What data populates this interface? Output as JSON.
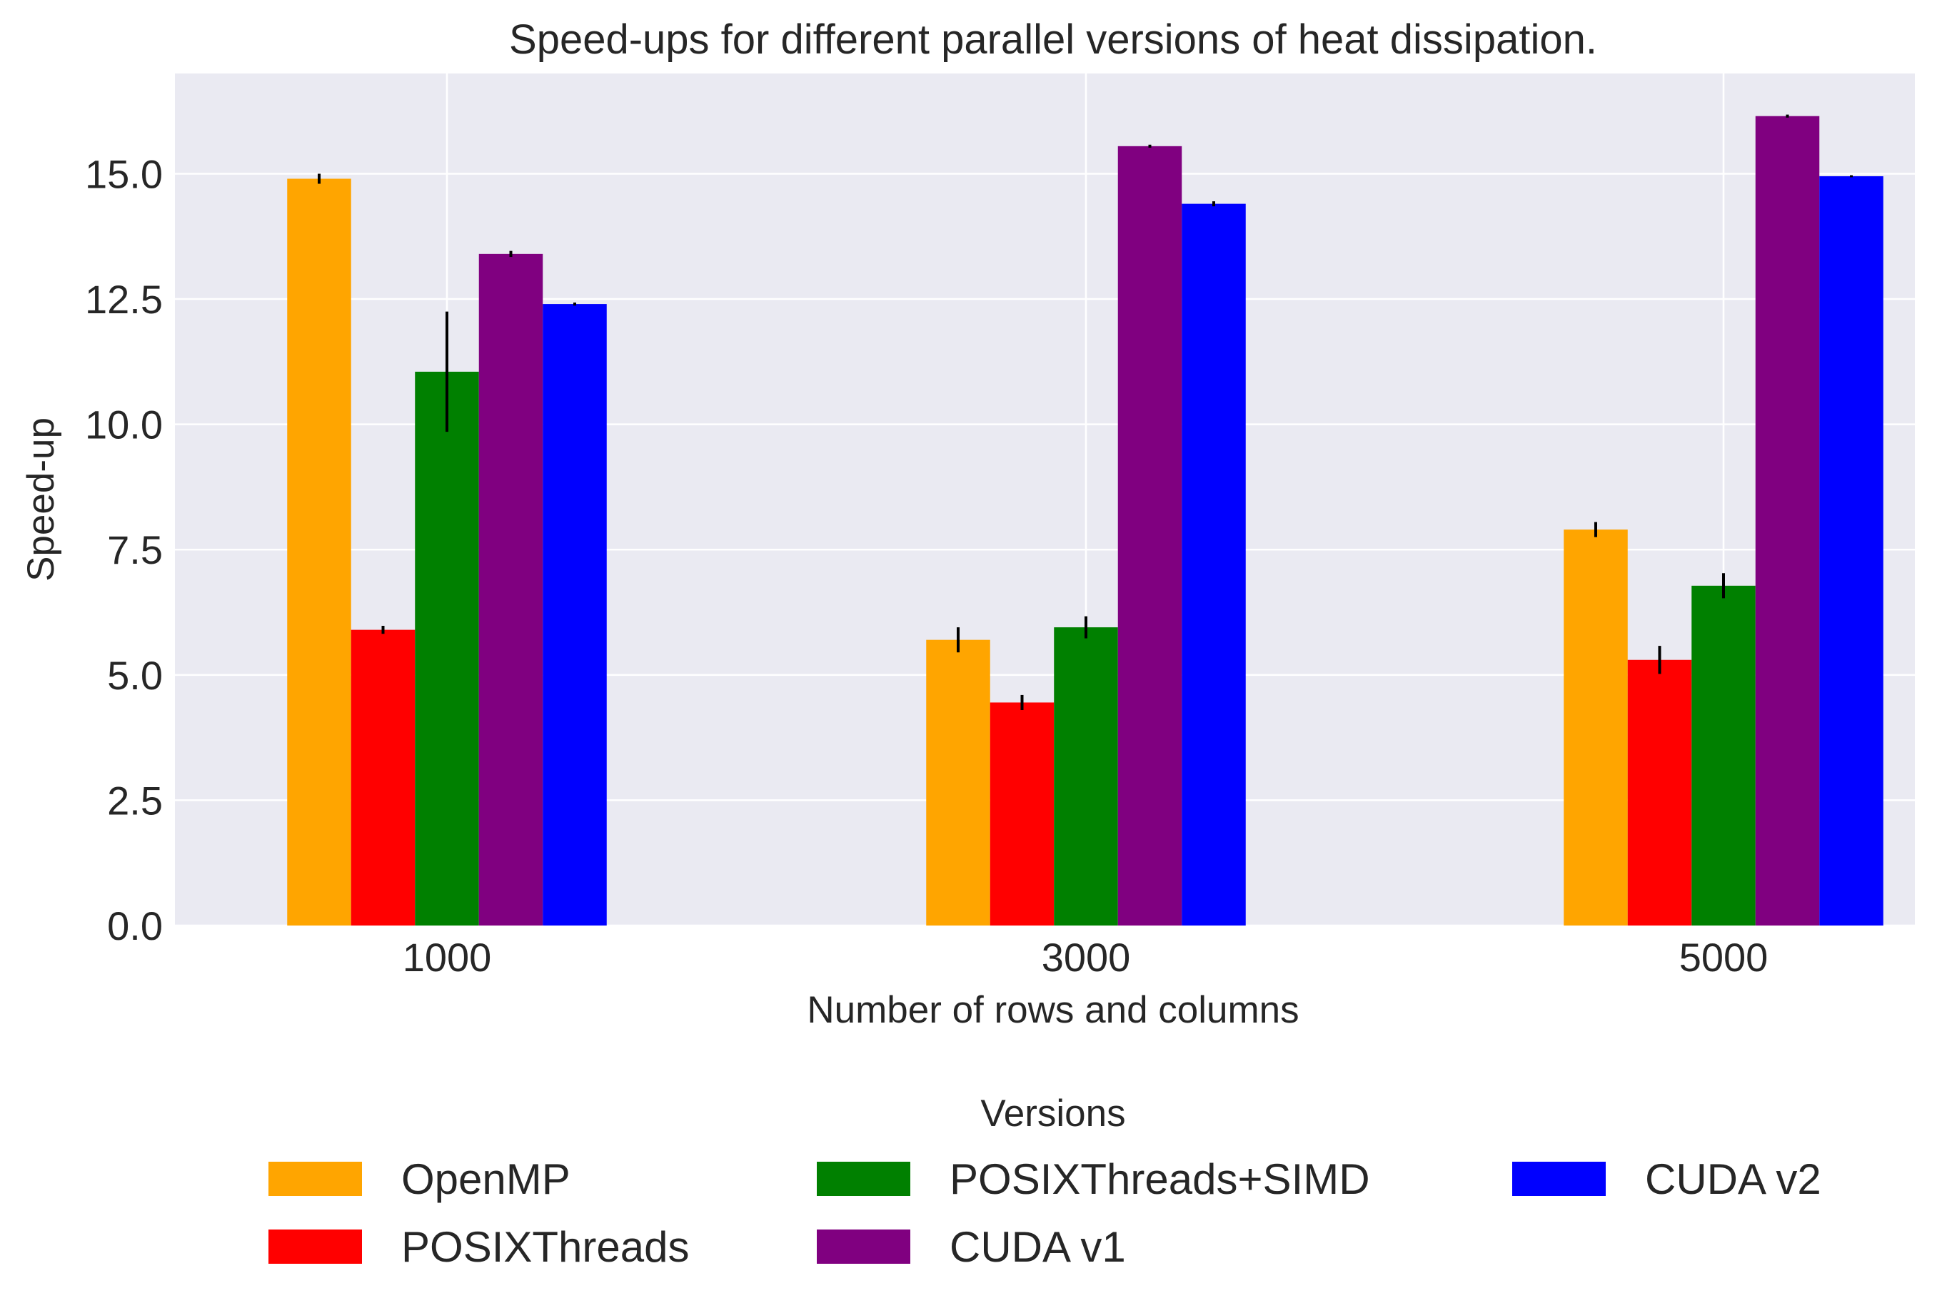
{
  "chart_data": {
    "type": "bar",
    "title": "Speed-ups for different parallel versions of heat dissipation.",
    "xlabel": "Number of rows and columns",
    "ylabel": "Speed-up",
    "categories": [
      "1000",
      "3000",
      "5000"
    ],
    "ylim": [
      0,
      17
    ],
    "yticks": [
      "0.0",
      "2.5",
      "5.0",
      "7.5",
      "10.0",
      "12.5",
      "15.0"
    ],
    "grid": true,
    "legend_title": "Versions",
    "legend_position": "bottom-center",
    "series": [
      {
        "name": "OpenMP",
        "color": "#ffa500",
        "values": [
          14.9,
          5.7,
          7.9
        ],
        "errors": [
          0.1,
          0.25,
          0.15
        ]
      },
      {
        "name": "POSIXThreads",
        "color": "#ff0000",
        "values": [
          5.9,
          4.45,
          5.3
        ],
        "errors": [
          0.08,
          0.15,
          0.28
        ]
      },
      {
        "name": "POSIXThreads+SIMD",
        "color": "#008000",
        "values": [
          11.05,
          5.95,
          6.78
        ],
        "errors": [
          1.2,
          0.22,
          0.25
        ]
      },
      {
        "name": "CUDA v1",
        "color": "#800080",
        "values": [
          13.4,
          15.55,
          16.15
        ],
        "errors": [
          0.06,
          0.03,
          0.03
        ]
      },
      {
        "name": "CUDA v2",
        "color": "#0000ff",
        "values": [
          12.4,
          14.4,
          14.95
        ],
        "errors": [
          0.03,
          0.05,
          0.02
        ]
      }
    ]
  }
}
